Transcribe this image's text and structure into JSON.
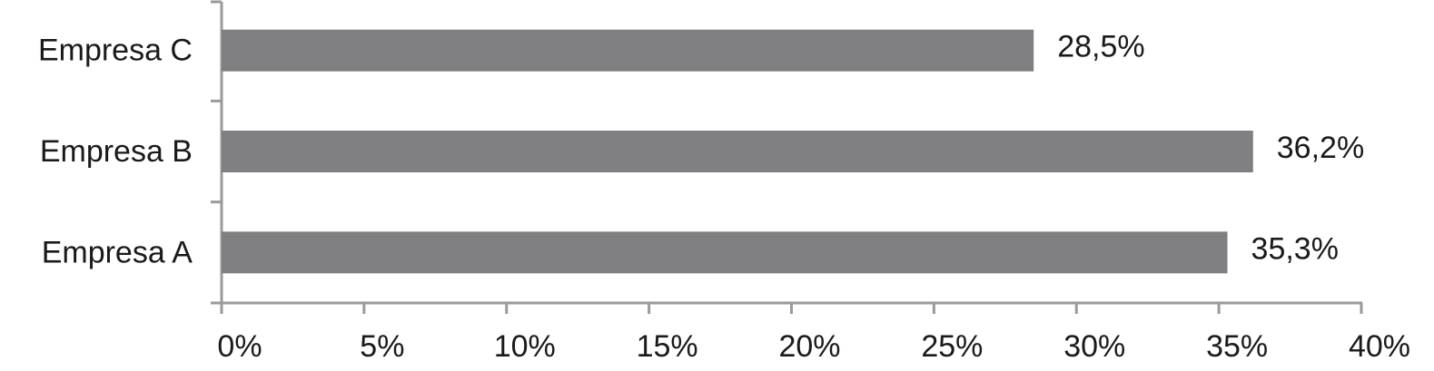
{
  "chart_data": {
    "type": "bar",
    "orientation": "horizontal",
    "categories": [
      "Empresa A",
      "Empresa B",
      "Empresa C"
    ],
    "values": [
      35.3,
      36.2,
      28.5
    ],
    "value_labels": [
      "35,3%",
      "36,2%",
      "28,5%"
    ],
    "color": "#808083",
    "xlim": [
      0,
      40
    ],
    "xticks": [
      {
        "value": 0,
        "label": "0%"
      },
      {
        "value": 5,
        "label": "5%"
      },
      {
        "value": 10,
        "label": "10%"
      },
      {
        "value": 15,
        "label": "15%"
      },
      {
        "value": 20,
        "label": "20%"
      },
      {
        "value": 25,
        "label": "25%"
      },
      {
        "value": 30,
        "label": "30%"
      },
      {
        "value": 35,
        "label": "35%"
      },
      {
        "value": 40,
        "label": "40%"
      }
    ],
    "grid": false
  }
}
